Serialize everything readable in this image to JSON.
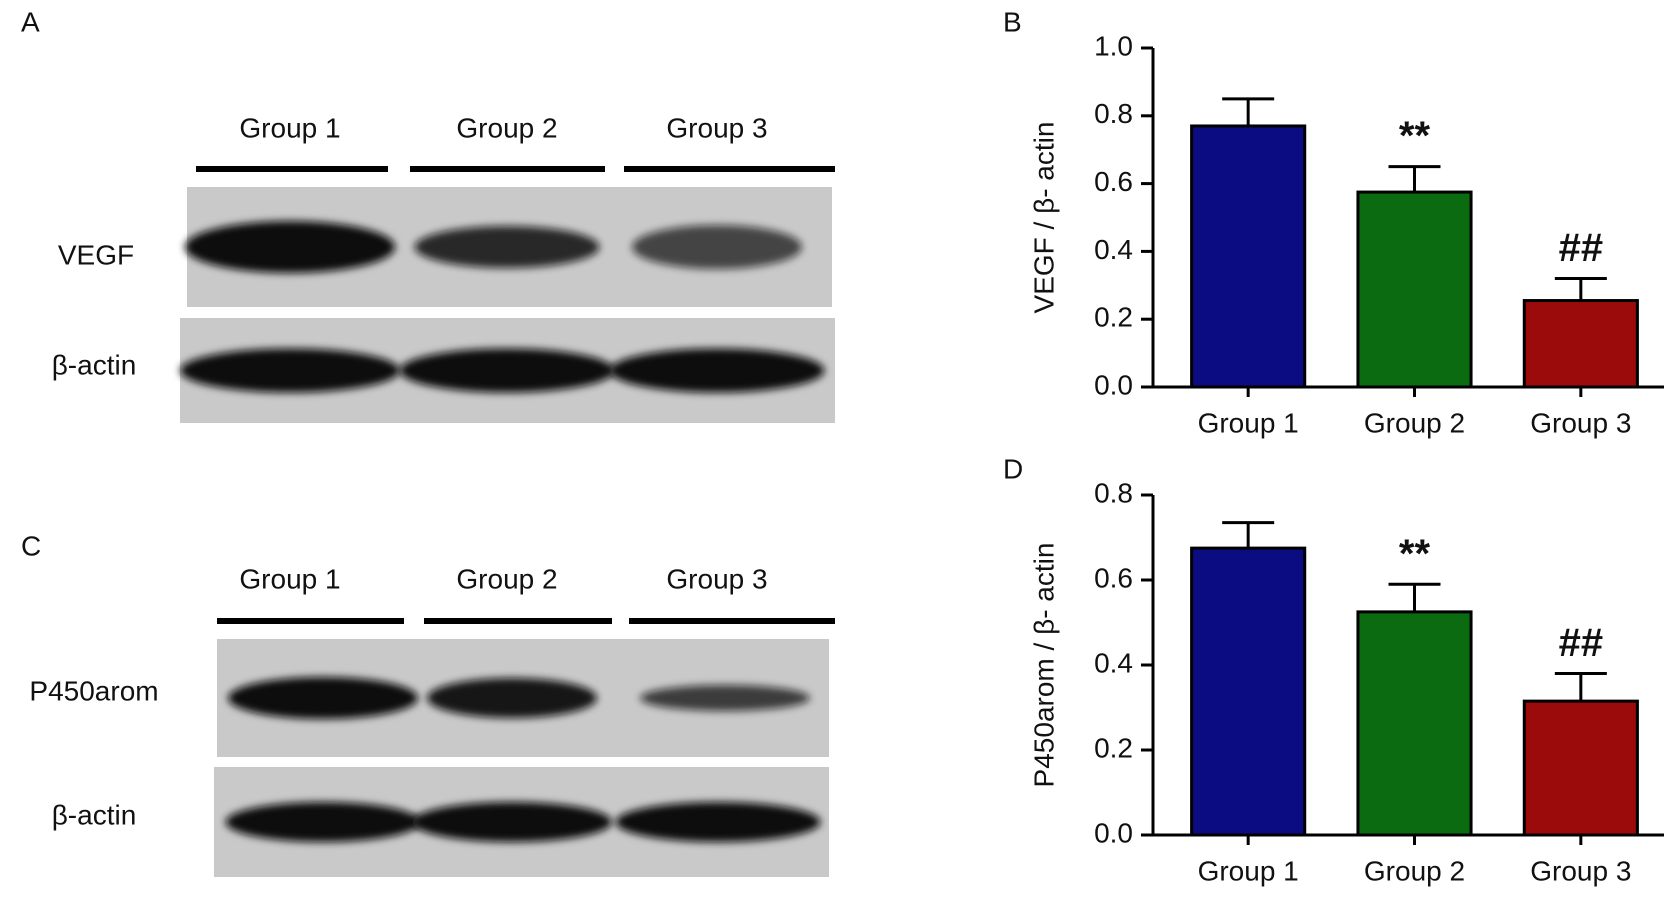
{
  "chart_data": [
    {
      "type": "bar",
      "panel": "B",
      "ylabel": "VEGF / β- actin",
      "categories": [
        "Group 1",
        "Group 2",
        "Group 3"
      ],
      "values": [
        0.77,
        0.575,
        0.255
      ],
      "errors": [
        0.08,
        0.075,
        0.065
      ],
      "colors": [
        "#0b0b82",
        "#0b6b10",
        "#9c0b0b"
      ],
      "annotations": [
        null,
        "**",
        "##"
      ],
      "ylim": [
        0,
        1.0
      ],
      "yticks": [
        {
          "value": 0,
          "label": "0.0"
        },
        0.2,
        0.4,
        0.6,
        0.8,
        {
          "value": 1.0,
          "label": "1.0"
        }
      ],
      "grid": false
    },
    {
      "type": "bar",
      "panel": "D",
      "ylabel": "P450arom / β- actin",
      "categories": [
        "Group 1",
        "Group 2",
        "Group 3"
      ],
      "values": [
        0.675,
        0.525,
        0.315
      ],
      "errors": [
        0.06,
        0.065,
        0.065
      ],
      "colors": [
        "#0b0b82",
        "#0b6b10",
        "#9c0b0b"
      ],
      "annotations": [
        null,
        "**",
        "##"
      ],
      "ylim": [
        0,
        0.8
      ],
      "yticks": [
        {
          "value": 0,
          "label": "0.0"
        },
        0.2,
        0.4,
        0.6,
        0.8
      ],
      "grid": false
    }
  ],
  "blots": [
    {
      "panel": "A",
      "lanes": [
        "Group 1",
        "Group 2",
        "Group 3"
      ],
      "rows": [
        "VEGF",
        "β-actin"
      ]
    },
    {
      "panel": "C",
      "lanes": [
        "Group 1",
        "Group 2",
        "Group 3"
      ],
      "rows": [
        "P450arom",
        "β-actin"
      ]
    }
  ]
}
